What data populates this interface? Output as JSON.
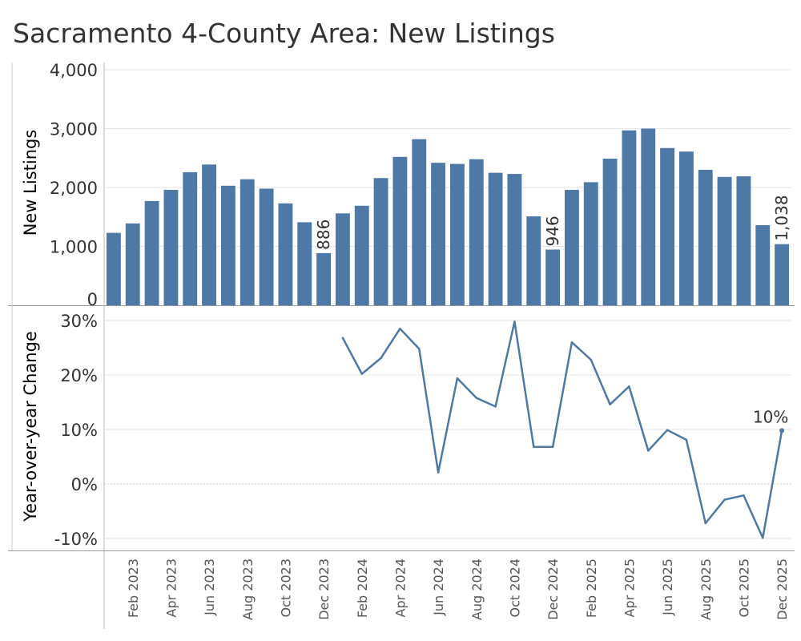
{
  "title": "Sacramento 4-County Area: New Listings",
  "colors": {
    "bar": "#4e79a7",
    "line": "#4e79a7",
    "grid": "#e6e6e6",
    "axis": "#bbbbbb"
  },
  "chart_data": [
    {
      "type": "bar",
      "ylabel": "New Listings",
      "ylim": [
        0,
        4000
      ],
      "yticks": [
        "0",
        "1,000",
        "2,000",
        "3,000",
        "4,000"
      ],
      "grid": true,
      "categories": [
        "Jan 2023",
        "Feb 2023",
        "Mar 2023",
        "Apr 2023",
        "May 2023",
        "Jun 2023",
        "Jul 2023",
        "Aug 2023",
        "Sep 2023",
        "Oct 2023",
        "Nov 2023",
        "Dec 2023",
        "Jan 2024",
        "Feb 2024",
        "Mar 2024",
        "Apr 2024",
        "May 2024",
        "Jun 2024",
        "Jul 2024",
        "Aug 2024",
        "Sep 2024",
        "Oct 2024",
        "Nov 2024",
        "Dec 2024",
        "Jan 2025",
        "Feb 2025",
        "Mar 2025",
        "Apr 2025",
        "May 2025",
        "Jun 2025",
        "Jul 2025",
        "Aug 2025",
        "Sep 2025",
        "Oct 2025",
        "Nov 2025",
        "Dec 2025"
      ],
      "values": [
        1230,
        1390,
        1770,
        1960,
        2260,
        2390,
        2030,
        2140,
        1980,
        1730,
        1410,
        886,
        1560,
        1690,
        2160,
        2520,
        2820,
        2420,
        2400,
        2480,
        2250,
        2230,
        1510,
        946,
        1960,
        2090,
        2490,
        2970,
        3000,
        2670,
        2610,
        2300,
        2180,
        2190,
        1360,
        1038
      ],
      "data_labels": [
        {
          "index": 11,
          "text": "886"
        },
        {
          "index": 23,
          "text": "946"
        },
        {
          "index": 35,
          "text": "1,038"
        }
      ]
    },
    {
      "type": "line",
      "ylabel": "Year-over-year Change",
      "ylim": [
        -10,
        30
      ],
      "yticks": [
        "-10%",
        "0%",
        "10%",
        "20%",
        "30%"
      ],
      "grid": true,
      "categories": [
        "Jan 2023",
        "Feb 2023",
        "Mar 2023",
        "Apr 2023",
        "May 2023",
        "Jun 2023",
        "Jul 2023",
        "Aug 2023",
        "Sep 2023",
        "Oct 2023",
        "Nov 2023",
        "Dec 2023",
        "Jan 2024",
        "Feb 2024",
        "Mar 2024",
        "Apr 2024",
        "May 2024",
        "Jun 2024",
        "Jul 2024",
        "Aug 2024",
        "Sep 2024",
        "Oct 2024",
        "Nov 2024",
        "Dec 2024",
        "Jan 2025",
        "Feb 2025",
        "Mar 2025",
        "Apr 2025",
        "May 2025",
        "Jun 2025",
        "Jul 2025",
        "Aug 2025",
        "Sep 2025",
        "Oct 2025",
        "Nov 2025",
        "Dec 2025"
      ],
      "values": [
        null,
        null,
        null,
        null,
        null,
        null,
        null,
        null,
        null,
        null,
        null,
        null,
        26.8,
        20.2,
        23.1,
        28.5,
        24.8,
        2.1,
        19.4,
        15.8,
        14.2,
        29.8,
        6.8,
        6.8,
        26.0,
        22.8,
        14.6,
        17.9,
        6.1,
        9.9,
        8.1,
        -7.2,
        -2.9,
        -2.1,
        -9.9,
        9.8
      ],
      "data_labels": [
        {
          "index": 35,
          "text": "10%"
        }
      ]
    }
  ],
  "x_axis": {
    "tick_labels": [
      {
        "index": 1,
        "text": "Feb 2023"
      },
      {
        "index": 3,
        "text": "Apr 2023"
      },
      {
        "index": 5,
        "text": "Jun 2023"
      },
      {
        "index": 7,
        "text": "Aug 2023"
      },
      {
        "index": 9,
        "text": "Oct 2023"
      },
      {
        "index": 11,
        "text": "Dec 2023"
      },
      {
        "index": 13,
        "text": "Feb 2024"
      },
      {
        "index": 15,
        "text": "Apr 2024"
      },
      {
        "index": 17,
        "text": "Jun 2024"
      },
      {
        "index": 19,
        "text": "Aug 2024"
      },
      {
        "index": 21,
        "text": "Oct 2024"
      },
      {
        "index": 23,
        "text": "Dec 2024"
      },
      {
        "index": 25,
        "text": "Feb 2025"
      },
      {
        "index": 27,
        "text": "Apr 2025"
      },
      {
        "index": 29,
        "text": "Jun 2025"
      },
      {
        "index": 31,
        "text": "Aug 2025"
      },
      {
        "index": 33,
        "text": "Oct 2025"
      },
      {
        "index": 35,
        "text": "Dec 2025"
      }
    ]
  }
}
